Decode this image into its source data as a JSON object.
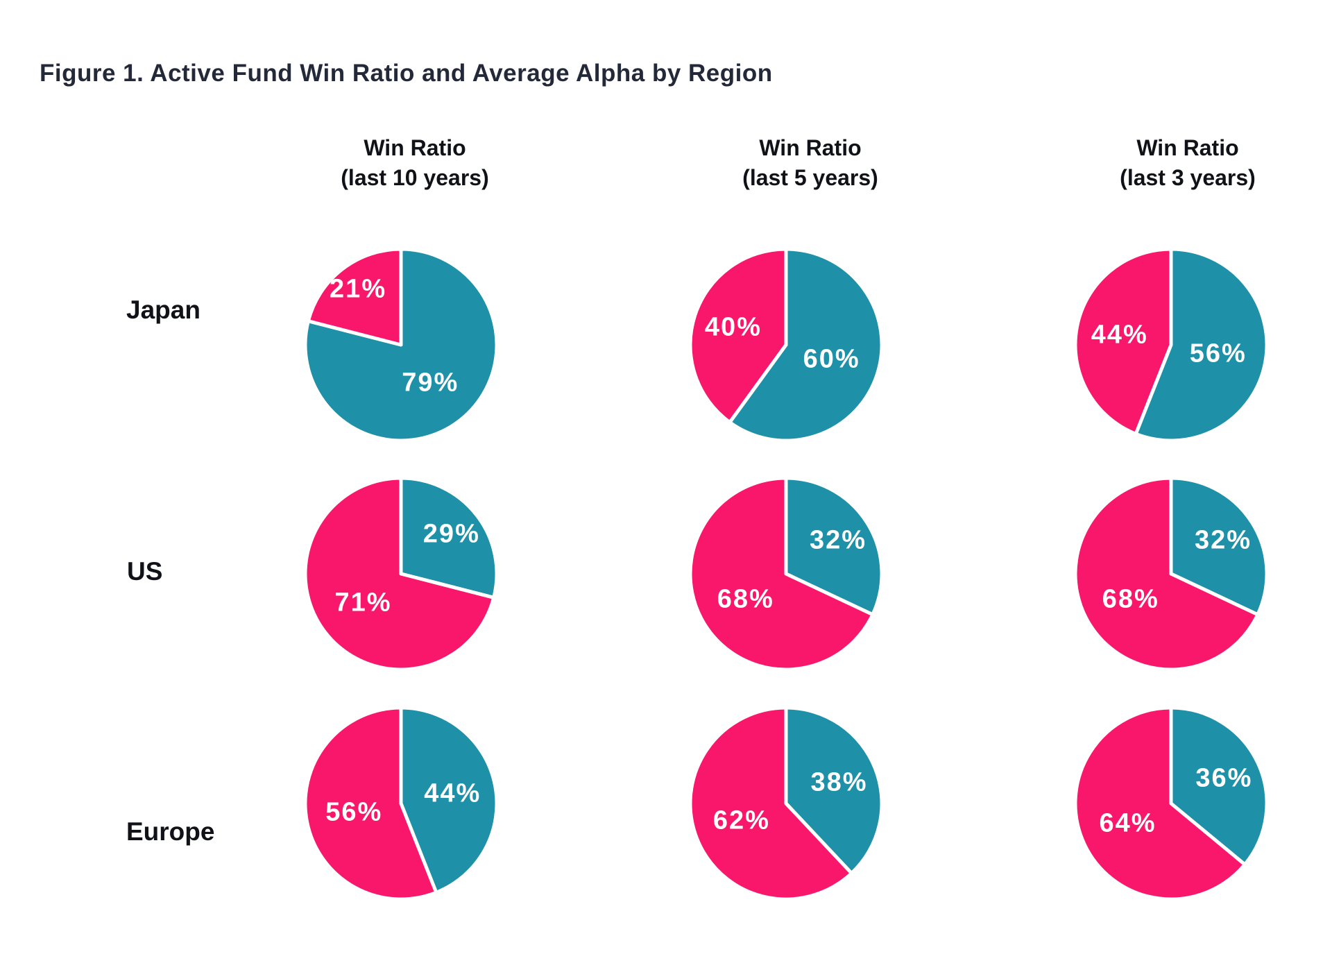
{
  "title": "Figure 1. Active Fund Win Ratio and Average Alpha by Region",
  "colors": {
    "pink": "#F9176B",
    "teal": "#1E90A8",
    "title_text": "#232938",
    "label_text": "#101218",
    "pie_label_text": "#FFFFFF",
    "background": "#FFFFFF"
  },
  "header": {
    "columns": [
      {
        "line1": "Win Ratio",
        "line2": "(last 10 years)"
      },
      {
        "line1": "Win Ratio",
        "line2": "(last 5 years)"
      },
      {
        "line1": "Win Ratio",
        "line2": "(last 3 years)"
      }
    ]
  },
  "row_labels": [
    "Japan",
    "US",
    "Europe"
  ],
  "chart_data": {
    "type": "pie",
    "unit": "percent",
    "layout": "3x3 grid of pies; rows are regions, columns are time periods; teal slice starts at 12 o'clock and sweeps clockwise, pink slice fills the remainder; white divider lines between slices; no legend shown",
    "columns": [
      "Win Ratio (last 10 years)",
      "Win Ratio (last 5 years)",
      "Win Ratio (last 3 years)"
    ],
    "rows": [
      "Japan",
      "US",
      "Europe"
    ],
    "pies": [
      {
        "region": "Japan",
        "period": "last 10 years",
        "slices": [
          {
            "color": "teal",
            "value": 79,
            "label": "79%"
          },
          {
            "color": "pink",
            "value": 21,
            "label": "21%"
          }
        ]
      },
      {
        "region": "Japan",
        "period": "last 5 years",
        "slices": [
          {
            "color": "teal",
            "value": 60,
            "label": "60%"
          },
          {
            "color": "pink",
            "value": 40,
            "label": "40%"
          }
        ]
      },
      {
        "region": "Japan",
        "period": "last 3 years",
        "slices": [
          {
            "color": "teal",
            "value": 56,
            "label": "56%"
          },
          {
            "color": "pink",
            "value": 44,
            "label": "44%"
          }
        ]
      },
      {
        "region": "US",
        "period": "last 10 years",
        "slices": [
          {
            "color": "teal",
            "value": 29,
            "label": "29%"
          },
          {
            "color": "pink",
            "value": 71,
            "label": "71%"
          }
        ]
      },
      {
        "region": "US",
        "period": "last 5 years",
        "slices": [
          {
            "color": "teal",
            "value": 32,
            "label": "32%"
          },
          {
            "color": "pink",
            "value": 68,
            "label": "68%"
          }
        ]
      },
      {
        "region": "US",
        "period": "last 3 years",
        "slices": [
          {
            "color": "teal",
            "value": 32,
            "label": "32%"
          },
          {
            "color": "pink",
            "value": 68,
            "label": "68%"
          }
        ]
      },
      {
        "region": "Europe",
        "period": "last 10 years",
        "slices": [
          {
            "color": "teal",
            "value": 44,
            "label": "44%"
          },
          {
            "color": "pink",
            "value": 56,
            "label": "56%"
          }
        ]
      },
      {
        "region": "Europe",
        "period": "last 5 years",
        "slices": [
          {
            "color": "teal",
            "value": 38,
            "label": "38%"
          },
          {
            "color": "pink",
            "value": 62,
            "label": "62%"
          }
        ]
      },
      {
        "region": "Europe",
        "period": "last 3 years",
        "slices": [
          {
            "color": "teal",
            "value": 36,
            "label": "36%"
          },
          {
            "color": "pink",
            "value": 64,
            "label": "64%"
          }
        ]
      }
    ]
  }
}
